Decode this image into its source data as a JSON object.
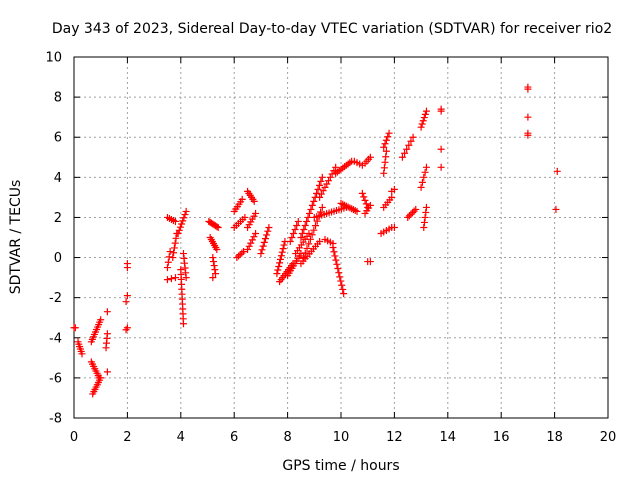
{
  "chart_data": {
    "type": "scatter",
    "title": "Day 343 of 2023, Sidereal Day-to-day VTEC variation (SDTVAR) for receiver rio2",
    "xlabel": "GPS time / hours",
    "ylabel": "SDTVAR / TECUs",
    "xlim": [
      0,
      20
    ],
    "ylim": [
      -8,
      10
    ],
    "xticks": [
      0,
      2,
      4,
      6,
      8,
      10,
      12,
      14,
      16,
      18,
      20
    ],
    "yticks": [
      -8,
      -6,
      -4,
      -2,
      0,
      2,
      4,
      6,
      8,
      10
    ],
    "grid": true,
    "marker": "plus",
    "colors": {
      "series": "#ff0000",
      "grid": "#a0a0a0",
      "axis": "#000000"
    },
    "segments": [
      {
        "x0": 0.0,
        "y0": -3.5,
        "x1": 0.05,
        "y1": -3.5,
        "n": 2
      },
      {
        "x0": 0.15,
        "y0": -4.2,
        "x1": 0.3,
        "y1": -4.8,
        "n": 6
      },
      {
        "x0": 0.65,
        "y0": -4.2,
        "x1": 1.0,
        "y1": -3.1,
        "n": 10
      },
      {
        "x0": 0.65,
        "y0": -5.2,
        "x1": 0.95,
        "y1": -6.0,
        "n": 8
      },
      {
        "x0": 0.7,
        "y0": -6.8,
        "x1": 1.0,
        "y1": -6.0,
        "n": 8
      },
      {
        "x0": 1.2,
        "y0": -4.5,
        "x1": 1.25,
        "y1": -3.8,
        "n": 4
      },
      {
        "x0": 1.25,
        "y0": -2.7,
        "x1": 1.25,
        "y1": -2.7,
        "n": 1
      },
      {
        "x0": 1.25,
        "y0": -5.7,
        "x1": 1.25,
        "y1": -5.7,
        "n": 1
      },
      {
        "x0": 1.95,
        "y0": -3.6,
        "x1": 2.0,
        "y1": -3.5,
        "n": 2
      },
      {
        "x0": 1.95,
        "y0": -2.2,
        "x1": 2.0,
        "y1": -1.9,
        "n": 2
      },
      {
        "x0": 2.0,
        "y0": -0.5,
        "x1": 2.0,
        "y1": -0.3,
        "n": 2
      },
      {
        "x0": 3.5,
        "y0": 2.0,
        "x1": 3.8,
        "y1": 1.8,
        "n": 5
      },
      {
        "x0": 3.5,
        "y0": -0.5,
        "x1": 3.6,
        "y1": 0.3,
        "n": 4
      },
      {
        "x0": 3.5,
        "y0": -1.1,
        "x1": 3.8,
        "y1": -1.0,
        "n": 3
      },
      {
        "x0": 3.7,
        "y0": 0.0,
        "x1": 3.85,
        "y1": 1.2,
        "n": 6
      },
      {
        "x0": 3.9,
        "y0": 1.2,
        "x1": 4.2,
        "y1": 2.3,
        "n": 8
      },
      {
        "x0": 4.0,
        "y0": -0.6,
        "x1": 4.1,
        "y1": -3.3,
        "n": 12
      },
      {
        "x0": 4.1,
        "y0": 0.2,
        "x1": 4.2,
        "y1": -1.0,
        "n": 6
      },
      {
        "x0": 5.05,
        "y0": 1.8,
        "x1": 5.4,
        "y1": 1.5,
        "n": 8
      },
      {
        "x0": 5.1,
        "y0": 1.0,
        "x1": 5.35,
        "y1": 0.4,
        "n": 7
      },
      {
        "x0": 5.2,
        "y0": 0.0,
        "x1": 5.3,
        "y1": -0.8,
        "n": 5
      },
      {
        "x0": 5.2,
        "y0": -1.0,
        "x1": 5.2,
        "y1": -1.0,
        "n": 1
      },
      {
        "x0": 6.0,
        "y0": 2.3,
        "x1": 6.3,
        "y1": 2.9,
        "n": 6
      },
      {
        "x0": 6.0,
        "y0": 1.5,
        "x1": 6.4,
        "y1": 2.0,
        "n": 6
      },
      {
        "x0": 6.1,
        "y0": 0.0,
        "x1": 6.35,
        "y1": 0.3,
        "n": 5
      },
      {
        "x0": 6.5,
        "y0": 3.3,
        "x1": 6.75,
        "y1": 2.8,
        "n": 6
      },
      {
        "x0": 6.5,
        "y0": 1.5,
        "x1": 6.8,
        "y1": 2.2,
        "n": 6
      },
      {
        "x0": 6.5,
        "y0": 0.4,
        "x1": 6.8,
        "y1": 1.2,
        "n": 6
      },
      {
        "x0": 7.0,
        "y0": 0.2,
        "x1": 7.3,
        "y1": 1.5,
        "n": 8
      },
      {
        "x0": 7.6,
        "y0": -0.8,
        "x1": 7.9,
        "y1": 0.8,
        "n": 10
      },
      {
        "x0": 7.7,
        "y0": -1.2,
        "x1": 8.2,
        "y1": -0.3,
        "n": 10
      },
      {
        "x0": 8.0,
        "y0": -0.9,
        "x1": 8.5,
        "y1": 0.2,
        "n": 10
      },
      {
        "x0": 8.1,
        "y0": 0.8,
        "x1": 8.4,
        "y1": 1.8,
        "n": 6
      },
      {
        "x0": 8.3,
        "y0": 0.2,
        "x1": 8.8,
        "y1": 1.2,
        "n": 8
      },
      {
        "x0": 8.5,
        "y0": -0.3,
        "x1": 9.2,
        "y1": 0.8,
        "n": 10
      },
      {
        "x0": 8.5,
        "y0": 1.0,
        "x1": 9.3,
        "y1": 4.0,
        "n": 16
      },
      {
        "x0": 8.6,
        "y0": 0.0,
        "x1": 9.3,
        "y1": 2.5,
        "n": 12
      },
      {
        "x0": 9.0,
        "y0": 2.0,
        "x1": 10.2,
        "y1": 2.5,
        "n": 14
      },
      {
        "x0": 9.2,
        "y0": 3.0,
        "x1": 9.8,
        "y1": 4.5,
        "n": 10
      },
      {
        "x0": 9.4,
        "y0": 0.9,
        "x1": 9.7,
        "y1": 0.7,
        "n": 4
      },
      {
        "x0": 9.7,
        "y0": 0.5,
        "x1": 10.1,
        "y1": -1.8,
        "n": 12
      },
      {
        "x0": 9.8,
        "y0": 4.2,
        "x1": 10.4,
        "y1": 4.8,
        "n": 10
      },
      {
        "x0": 10.0,
        "y0": 2.7,
        "x1": 10.6,
        "y1": 2.3,
        "n": 10
      },
      {
        "x0": 10.5,
        "y0": 4.8,
        "x1": 10.8,
        "y1": 4.6,
        "n": 4
      },
      {
        "x0": 10.8,
        "y0": 3.2,
        "x1": 11.0,
        "y1": 2.5,
        "n": 5
      },
      {
        "x0": 10.9,
        "y0": 4.7,
        "x1": 11.1,
        "y1": 5.0,
        "n": 4
      },
      {
        "x0": 10.9,
        "y0": 2.2,
        "x1": 11.1,
        "y1": 2.6,
        "n": 4
      },
      {
        "x0": 11.0,
        "y0": -0.2,
        "x1": 11.1,
        "y1": -0.2,
        "n": 2
      },
      {
        "x0": 11.6,
        "y0": 4.2,
        "x1": 11.7,
        "y1": 5.3,
        "n": 5
      },
      {
        "x0": 11.6,
        "y0": 5.5,
        "x1": 11.8,
        "y1": 6.2,
        "n": 5
      },
      {
        "x0": 11.6,
        "y0": 2.5,
        "x1": 11.9,
        "y1": 3.0,
        "n": 5
      },
      {
        "x0": 11.5,
        "y0": 1.2,
        "x1": 11.9,
        "y1": 1.5,
        "n": 5
      },
      {
        "x0": 11.9,
        "y0": 3.3,
        "x1": 12.0,
        "y1": 3.4,
        "n": 2
      },
      {
        "x0": 12.0,
        "y0": 1.5,
        "x1": 12.0,
        "y1": 1.5,
        "n": 1
      },
      {
        "x0": 12.3,
        "y0": 5.0,
        "x1": 12.7,
        "y1": 6.0,
        "n": 6
      },
      {
        "x0": 12.5,
        "y0": 2.0,
        "x1": 12.8,
        "y1": 2.4,
        "n": 6
      },
      {
        "x0": 13.0,
        "y0": 6.5,
        "x1": 13.2,
        "y1": 7.3,
        "n": 6
      },
      {
        "x0": 13.0,
        "y0": 3.5,
        "x1": 13.2,
        "y1": 4.5,
        "n": 5
      },
      {
        "x0": 13.1,
        "y0": 1.5,
        "x1": 13.2,
        "y1": 2.5,
        "n": 5
      },
      {
        "x0": 13.75,
        "y0": 4.5,
        "x1": 13.75,
        "y1": 4.5,
        "n": 1
      },
      {
        "x0": 13.75,
        "y0": 5.4,
        "x1": 13.75,
        "y1": 5.4,
        "n": 1
      },
      {
        "x0": 13.75,
        "y0": 7.3,
        "x1": 13.75,
        "y1": 7.4,
        "n": 2
      },
      {
        "x0": 17.0,
        "y0": 8.4,
        "x1": 17.0,
        "y1": 8.5,
        "n": 2
      },
      {
        "x0": 17.0,
        "y0": 7.0,
        "x1": 17.0,
        "y1": 7.0,
        "n": 1
      },
      {
        "x0": 17.0,
        "y0": 6.1,
        "x1": 17.0,
        "y1": 6.2,
        "n": 2
      },
      {
        "x0": 18.1,
        "y0": 4.3,
        "x1": 18.1,
        "y1": 4.3,
        "n": 1
      },
      {
        "x0": 18.05,
        "y0": 2.4,
        "x1": 18.05,
        "y1": 2.4,
        "n": 1
      }
    ]
  }
}
